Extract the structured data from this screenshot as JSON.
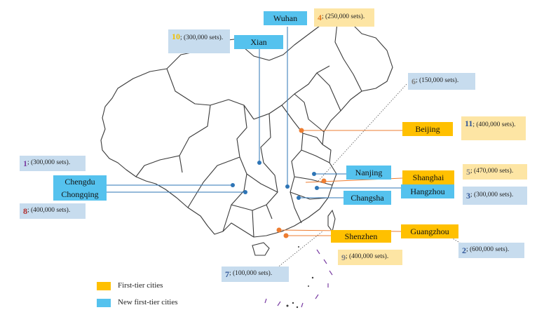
{
  "colors": {
    "first_tier": "#ffc000",
    "new_first_tier": "#55c2ee",
    "note_blue": "#c7dcee",
    "note_tan": "#fde5a4",
    "map_outline": "#3a3a3a"
  },
  "cities": {
    "wuhan": "Wuhan",
    "xian": "Xian",
    "chengdu": "Chengdu",
    "chongqing": "Chongqing",
    "beijing": "Beijing",
    "nanjing": "Nanjing",
    "shanghai": "Shanghai",
    "hangzhou": "Hangzhou",
    "changsha": "Changsha",
    "guangzhou": "Guangzhou",
    "shenzhen": "Shenzhen"
  },
  "notes": {
    "wuhan": {
      "rank": "4",
      "text": "; (250,000 sets)."
    },
    "xian": {
      "rank": "10",
      "text": "; (300,000 sets)."
    },
    "haoxing": {
      "rank": "6",
      "text": "; (150,000 sets)."
    },
    "beijing": {
      "rank": "11",
      "text": "; (400,000 sets)."
    },
    "chengdu": {
      "rank": "1",
      "text": "; (300,000 sets)."
    },
    "chongqing": {
      "rank": "8",
      "text": "; (400,000 sets)."
    },
    "shanghai": {
      "rank": "5",
      "text": "; (470,000 sets)."
    },
    "hangzhou": {
      "rank": "3",
      "text": "; (300,000 sets)."
    },
    "guangzhou": {
      "rank": "2",
      "text": "; (600,000 sets)."
    },
    "shenzhen": {
      "rank": "9",
      "text": "; (400,000 sets)."
    },
    "changsha": {
      "rank": "7",
      "text": "; (100,000 sets)."
    }
  },
  "legend": {
    "first_tier": "First-tier cities",
    "new_first_tier": "New first-tier cities"
  }
}
